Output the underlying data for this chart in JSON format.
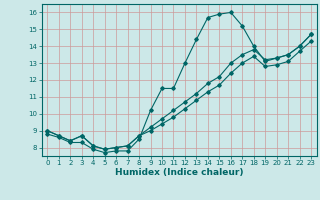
{
  "xlabel": "Humidex (Indice chaleur)",
  "bg_color": "#cce8e8",
  "grid_color": "#cc9999",
  "line_color": "#006666",
  "xlim": [
    -0.5,
    23.5
  ],
  "ylim": [
    7.5,
    16.5
  ],
  "xticks": [
    0,
    1,
    2,
    3,
    4,
    5,
    6,
    7,
    8,
    9,
    10,
    11,
    12,
    13,
    14,
    15,
    16,
    17,
    18,
    19,
    20,
    21,
    22,
    23
  ],
  "yticks": [
    8,
    9,
    10,
    11,
    12,
    13,
    14,
    15,
    16
  ],
  "line1_x": [
    0,
    1,
    2,
    3,
    4,
    5,
    6,
    7,
    8,
    9,
    10,
    11,
    12,
    13,
    14,
    15,
    16,
    17,
    18,
    19,
    20,
    21,
    22,
    23
  ],
  "line1_y": [
    8.8,
    8.6,
    8.3,
    8.3,
    7.9,
    7.7,
    7.8,
    7.8,
    8.5,
    10.2,
    11.5,
    11.5,
    13.0,
    14.4,
    15.7,
    15.9,
    16.0,
    15.2,
    14.0,
    13.1,
    13.3,
    13.5,
    14.0,
    14.7
  ],
  "line2_x": [
    0,
    1,
    2,
    3,
    4,
    5,
    6,
    7,
    8,
    9,
    10,
    11,
    12,
    13,
    14,
    15,
    16,
    17,
    18,
    19,
    20,
    21,
    22,
    23
  ],
  "line2_y": [
    9.0,
    8.7,
    8.4,
    8.7,
    8.1,
    7.9,
    8.0,
    8.1,
    8.7,
    9.2,
    9.7,
    10.2,
    10.7,
    11.2,
    11.8,
    12.2,
    13.0,
    13.5,
    13.8,
    13.2,
    13.3,
    13.5,
    14.0,
    14.7
  ],
  "line3_x": [
    0,
    1,
    2,
    3,
    4,
    5,
    6,
    7,
    8,
    9,
    10,
    11,
    12,
    13,
    14,
    15,
    16,
    17,
    18,
    19,
    20,
    21,
    22,
    23
  ],
  "line3_y": [
    9.0,
    8.7,
    8.4,
    8.7,
    8.1,
    7.9,
    8.0,
    8.1,
    8.7,
    9.0,
    9.4,
    9.8,
    10.3,
    10.8,
    11.3,
    11.7,
    12.4,
    13.0,
    13.4,
    12.8,
    12.9,
    13.1,
    13.7,
    14.3
  ]
}
